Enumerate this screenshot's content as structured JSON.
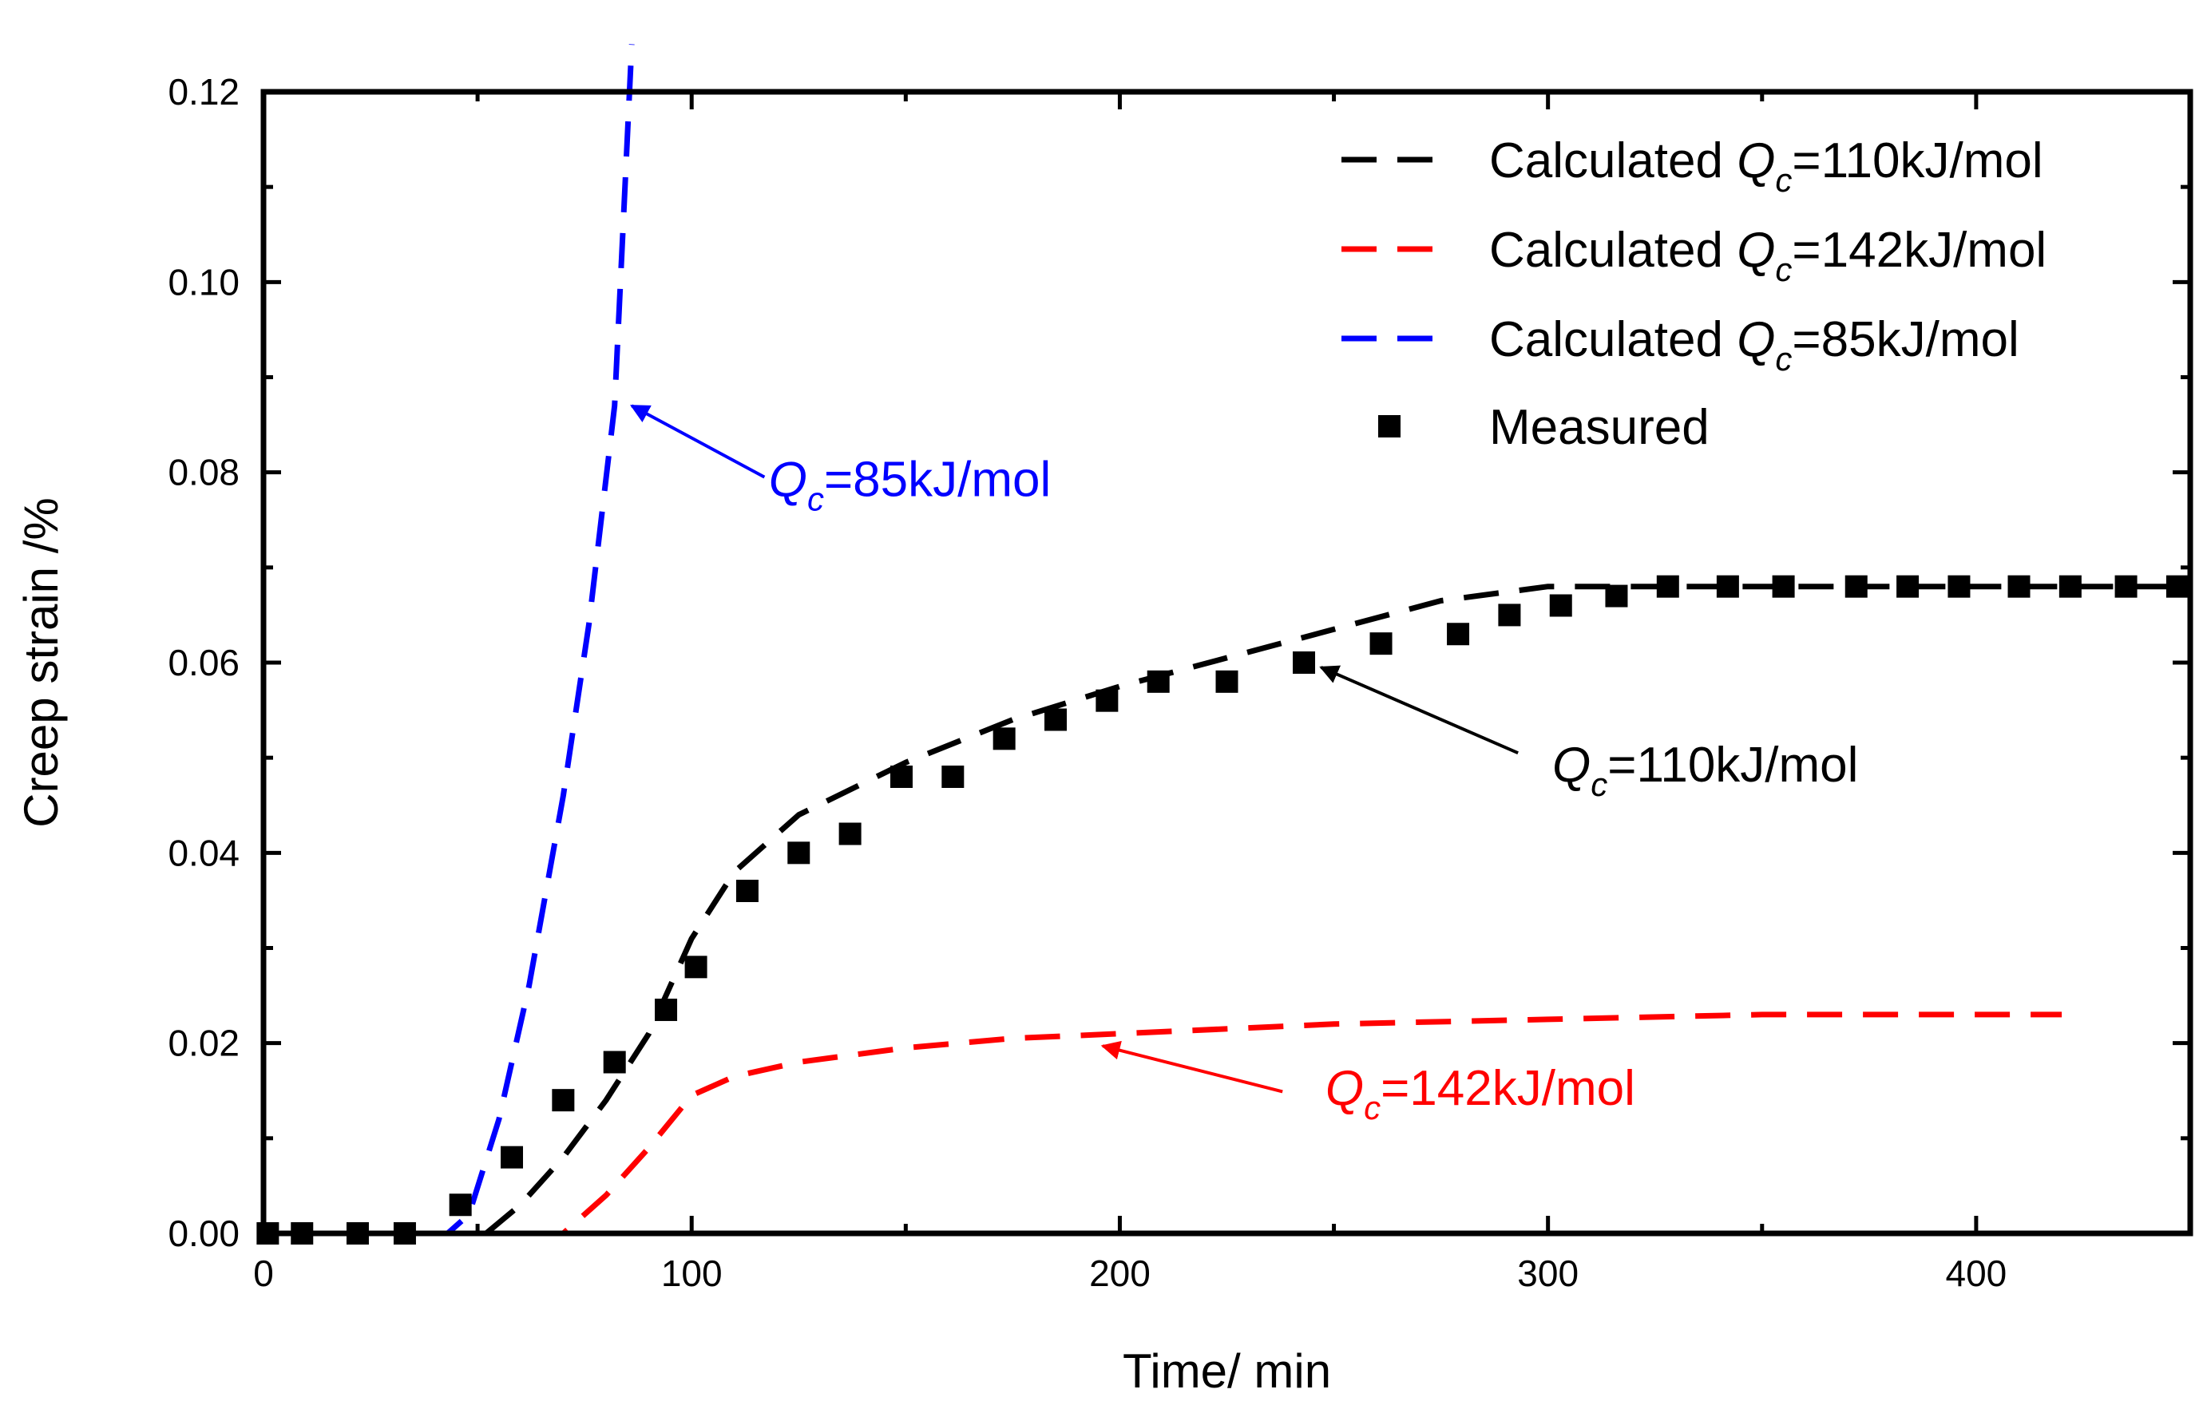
{
  "chart_data": {
    "type": "line",
    "xlabel": "Time/ min",
    "ylabel": "Creep strain /%",
    "xlim": [
      0,
      450
    ],
    "ylim": [
      0,
      0.12
    ],
    "x_ticks": [
      "0",
      "100",
      "200",
      "300",
      "400"
    ],
    "y_ticks": [
      "0.00",
      "0.02",
      "0.04",
      "0.06",
      "0.08",
      "0.10",
      "0.12"
    ],
    "legend_position": "top-right",
    "series": [
      {
        "name": "Calculated Q_c=110kJ/mol",
        "legend_prefix": "Calculated ",
        "legend_q": "Q",
        "legend_sub": "c",
        "legend_suffix": "=110kJ/mol",
        "color": "#000000",
        "style": "dashed",
        "x": [
          0,
          52,
          60,
          70,
          80,
          90,
          100,
          110,
          125,
          150,
          175,
          200,
          225,
          250,
          275,
          300,
          325,
          350,
          400,
          450
        ],
        "y": [
          0,
          0,
          0.003,
          0.008,
          0.014,
          0.021,
          0.031,
          0.038,
          0.044,
          0.0495,
          0.054,
          0.0575,
          0.0605,
          0.0635,
          0.0665,
          0.068,
          0.068,
          0.068,
          0.068,
          0.068
        ]
      },
      {
        "name": "Calculated Q_c=142kJ/mol",
        "legend_prefix": "Calculated ",
        "legend_q": "Q",
        "legend_sub": "c",
        "legend_suffix": "=142kJ/mol",
        "color": "#ff0000",
        "style": "dashed",
        "x": [
          50,
          70,
          80,
          90,
          100,
          110,
          125,
          150,
          175,
          200,
          250,
          300,
          350,
          420
        ],
        "y": [
          0,
          0,
          0.004,
          0.009,
          0.0145,
          0.0165,
          0.018,
          0.0195,
          0.0205,
          0.021,
          0.022,
          0.0225,
          0.023,
          0.023
        ]
      },
      {
        "name": "Calculated Q_c=85kJ/mol",
        "legend_prefix": "Calculated ",
        "legend_q": "Q",
        "legend_sub": "c",
        "legend_suffix": "=85kJ/mol",
        "color": "#0000ff",
        "style": "dashed",
        "x": [
          0,
          43,
          48,
          55,
          62,
          70,
          76,
          82,
          86
        ],
        "y": [
          0,
          0,
          0.002,
          0.012,
          0.026,
          0.046,
          0.064,
          0.087,
          0.125
        ]
      },
      {
        "name": "Measured",
        "legend_label": "Measured",
        "color": "#000000",
        "style": "square-markers",
        "x": [
          1,
          9,
          22,
          33,
          46,
          58,
          70,
          82,
          94,
          101,
          113,
          125,
          137,
          149,
          161,
          173,
          185,
          197,
          209,
          225,
          243,
          261,
          279,
          291,
          303,
          316,
          328,
          342,
          355,
          372,
          384,
          396,
          410,
          422,
          435,
          447
        ],
        "y": [
          0,
          0,
          0,
          0,
          0.003,
          0.008,
          0.014,
          0.018,
          0.0235,
          0.028,
          0.036,
          0.04,
          0.042,
          0.048,
          0.048,
          0.052,
          0.054,
          0.056,
          0.058,
          0.058,
          0.06,
          0.062,
          0.063,
          0.065,
          0.066,
          0.067,
          0.068,
          0.068,
          0.068,
          0.068,
          0.068,
          0.068,
          0.068,
          0.068,
          0.068,
          0.068
        ]
      }
    ],
    "annotations": [
      {
        "q": "Q",
        "sub": "c",
        "text": "=85kJ/mol",
        "color": "#0000ff",
        "text_x": 118,
        "text_y": 0.0775,
        "arrow_from": [
          117,
          0.0795
        ],
        "arrow_to": [
          86,
          0.087
        ]
      },
      {
        "q": "Q",
        "sub": "c",
        "text": "=110kJ/mol",
        "color": "#000000",
        "text_x": 301,
        "text_y": 0.0475,
        "arrow_from": [
          293,
          0.0505
        ],
        "arrow_to": [
          247,
          0.0595
        ]
      },
      {
        "q": "Q",
        "sub": "c",
        "text": "=142kJ/mol",
        "color": "#ff0000",
        "text_x": 248,
        "text_y": 0.0135,
        "arrow_from": [
          238,
          0.0149
        ],
        "arrow_to": [
          196,
          0.0197
        ]
      }
    ]
  }
}
